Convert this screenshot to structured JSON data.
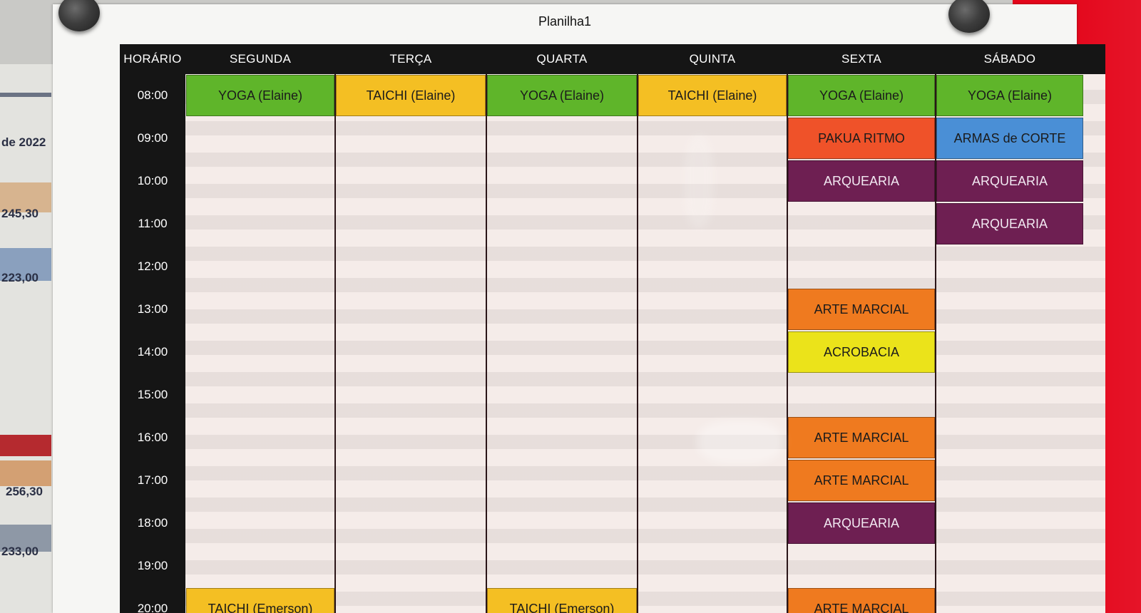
{
  "sheet_title": "Planilha1",
  "columns": [
    {
      "key": "time",
      "label": "HORÁRIO"
    },
    {
      "key": "seg",
      "label": "SEGUNDA"
    },
    {
      "key": "ter",
      "label": "TERÇA"
    },
    {
      "key": "qua",
      "label": "QUARTA"
    },
    {
      "key": "qui",
      "label": "QUINTA"
    },
    {
      "key": "sex",
      "label": "SEXTA"
    },
    {
      "key": "sab",
      "label": "SÁBADO"
    }
  ],
  "times": [
    "08:00",
    "09:00",
    "10:00",
    "11:00",
    "12:00",
    "13:00",
    "14:00",
    "15:00",
    "16:00",
    "17:00",
    "18:00",
    "19:00",
    "20:00"
  ],
  "cells": [
    {
      "day": "seg",
      "slot": 0,
      "label": "YOGA (Elaine)",
      "color": "#5fb52a"
    },
    {
      "day": "ter",
      "slot": 0,
      "label": "TAICHI (Elaine)",
      "color": "#f4bf23"
    },
    {
      "day": "qua",
      "slot": 0,
      "label": "YOGA (Elaine)",
      "color": "#5fb52a"
    },
    {
      "day": "qui",
      "slot": 0,
      "label": "TAICHI (Elaine)",
      "color": "#f4bf23"
    },
    {
      "day": "sex",
      "slot": 0,
      "label": "YOGA (Elaine)",
      "color": "#5fb52a"
    },
    {
      "day": "sab",
      "slot": 0,
      "label": "YOGA (Elaine)",
      "color": "#5fb52a"
    },
    {
      "day": "sex",
      "slot": 1,
      "label": "PAKUA RITMO",
      "color": "#ef5229"
    },
    {
      "day": "sab",
      "slot": 1,
      "label": "ARMAS de CORTE",
      "color": "#4a8fd6"
    },
    {
      "day": "sex",
      "slot": 2,
      "label": "ARQUEARIA",
      "color": "#6e1f52",
      "light": true
    },
    {
      "day": "sab",
      "slot": 2,
      "label": "ARQUEARIA",
      "color": "#6e1f52",
      "light": true
    },
    {
      "day": "sab",
      "slot": 3,
      "label": "ARQUEARIA",
      "color": "#6e1f52",
      "light": true
    },
    {
      "day": "sex",
      "slot": 5,
      "label": "ARTE MARCIAL",
      "color": "#ef7a1f"
    },
    {
      "day": "sex",
      "slot": 6,
      "label": "ACROBACIA",
      "color": "#ebe31a"
    },
    {
      "day": "sex",
      "slot": 8,
      "label": "ARTE MARCIAL",
      "color": "#ef7a1f"
    },
    {
      "day": "sex",
      "slot": 9,
      "label": "ARTE MARCIAL",
      "color": "#ef7a1f"
    },
    {
      "day": "sex",
      "slot": 10,
      "label": "ARQUEARIA",
      "color": "#6e1f52",
      "light": true
    },
    {
      "day": "seg",
      "slot": 12,
      "label": "TAICHI (Emerson)",
      "color": "#f4bf23"
    },
    {
      "day": "qua",
      "slot": 12,
      "label": "TAICHI (Emerson)",
      "color": "#f4bf23"
    },
    {
      "day": "sex",
      "slot": 12,
      "label": "ARTE MARCIAL",
      "color": "#ef7a1f"
    }
  ],
  "background_sheet": {
    "texts": [
      "de 2022",
      "245,30",
      "223,00",
      "256,30",
      "233,00"
    ]
  },
  "colors": {
    "grid_black": "#151515",
    "board_red": "#e4061b",
    "brick_base": "#b62228"
  }
}
